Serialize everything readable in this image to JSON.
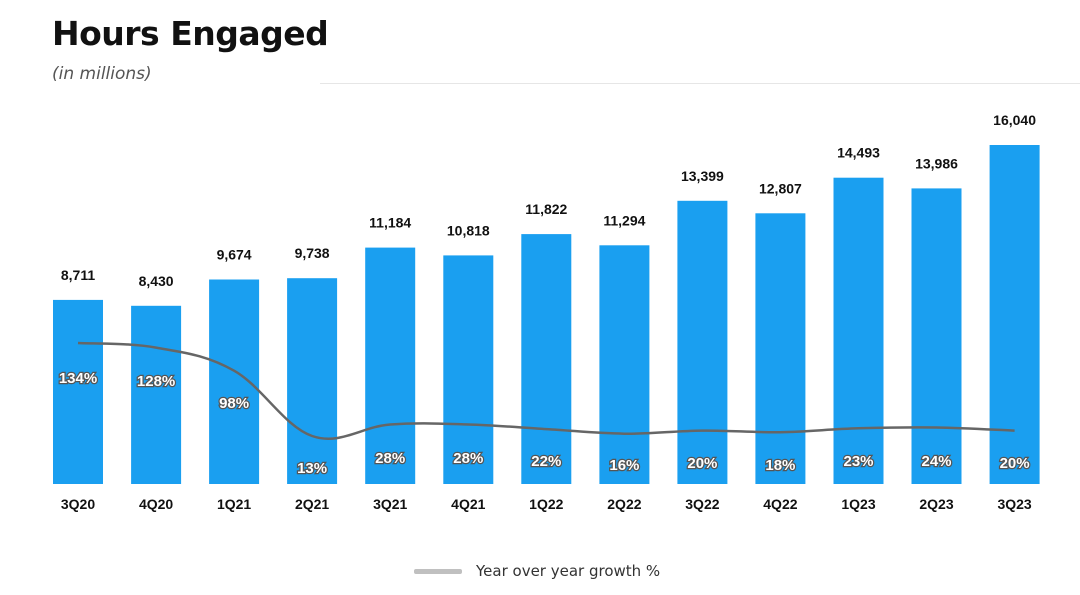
{
  "title": "Hours Engaged",
  "subtitle": "(in millions)",
  "colors": {
    "bar": "#1A9FF0",
    "line": "#666666"
  },
  "chart_data": {
    "type": "bar",
    "categories": [
      "3Q20",
      "4Q20",
      "1Q21",
      "2Q21",
      "3Q21",
      "4Q21",
      "1Q22",
      "2Q22",
      "3Q22",
      "4Q22",
      "1Q23",
      "2Q23",
      "3Q23"
    ],
    "series": [
      {
        "values": [
          8711,
          8430,
          9674,
          9738,
          11184,
          10818,
          11822,
          11294,
          13399,
          12807,
          14493,
          13986,
          16040
        ],
        "labels": [
          "8,711",
          "8,430",
          "9,674",
          "9,738",
          "11,184",
          "10,818",
          "11,822",
          "11,294",
          "13,399",
          "12,807",
          "14,493",
          "13,986",
          "16,040"
        ]
      },
      {
        "name": "Year over year growth %",
        "type": "line",
        "values": [
          134,
          128,
          98,
          13,
          28,
          28,
          22,
          16,
          20,
          18,
          23,
          24,
          20
        ],
        "labels": [
          "134%",
          "128%",
          "98%",
          "13%",
          "28%",
          "28%",
          "22%",
          "16%",
          "20%",
          "18%",
          "23%",
          "24%",
          "20%"
        ]
      }
    ],
    "ylim": [
      0,
      16040
    ],
    "grid": false,
    "legend": "bottom-center"
  }
}
